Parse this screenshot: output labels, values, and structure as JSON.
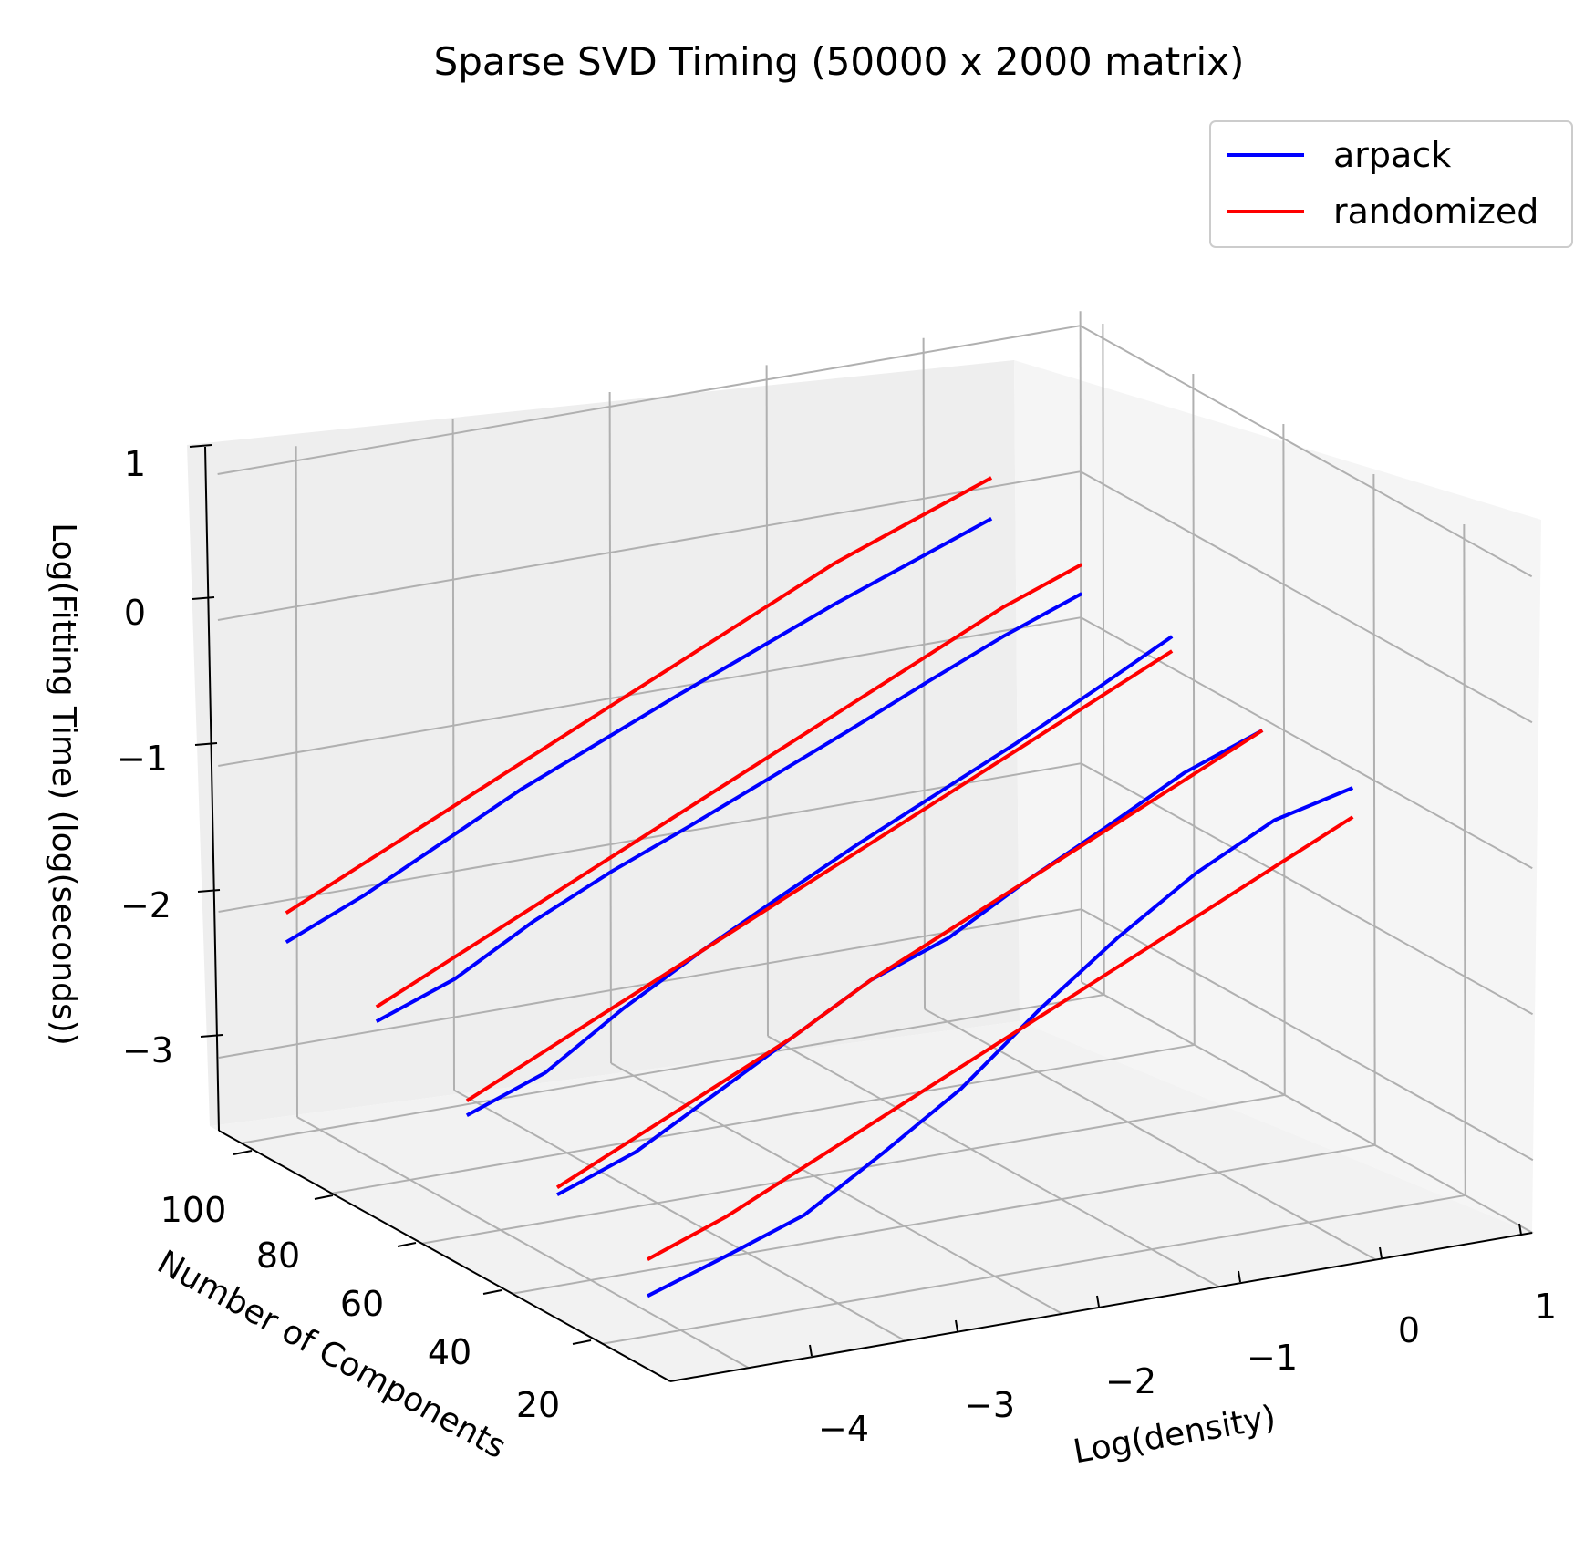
{
  "chart_data": {
    "type": "line",
    "projection": "3d",
    "title": "Sparse SVD Timing (50000 x 2000 matrix)",
    "xlabel": "Log(density)",
    "ylabel": "Number of Components",
    "zlabel": "Log(Fitting Time) (log(seconds))",
    "xticks": [
      "−4",
      "−3",
      "−2",
      "−1",
      "0",
      "1"
    ],
    "yticks": [
      "20",
      "40",
      "60",
      "80",
      "100"
    ],
    "zticks": [
      "−3",
      "−2",
      "−1",
      "0",
      "1"
    ],
    "xlim": [
      -4.5,
      1.0
    ],
    "ylim": [
      5,
      105
    ],
    "zlim": [
      -3.5,
      1.1
    ],
    "grid": true,
    "legend_position": "top-right",
    "colors": {
      "arpack": "#0000ff",
      "randomized": "#ff0000",
      "grid": "#b0b0b0",
      "pane": "#f2f2f2"
    },
    "series": [
      {
        "name": "arpack",
        "color": "#0000ff",
        "lines": [
          {
            "n_components": 10,
            "x": [
              -4.5,
              -4.0,
              -3.5,
              -3.0,
              -2.5,
              -2.0,
              -1.5,
              -1.0,
              -0.5,
              0.0
            ],
            "z": [
              -3.0,
              -2.82,
              -2.63,
              -2.3,
              -1.95,
              -1.5,
              -1.1,
              -0.75,
              -0.48,
              -0.35
            ]
          },
          {
            "n_components": 30,
            "x": [
              -4.5,
              -4.0,
              -3.5,
              -3.0,
              -2.5,
              -2.0,
              -1.5,
              -1.0,
              -0.5,
              0.0
            ],
            "z": [
              -2.65,
              -2.45,
              -2.15,
              -1.85,
              -1.55,
              -1.35,
              -1.05,
              -0.78,
              -0.5,
              -0.3
            ]
          },
          {
            "n_components": 50,
            "x": [
              -4.5,
              -4.0,
              -3.5,
              -3.0,
              -2.5,
              -2.0,
              -1.5,
              -1.0,
              -0.5,
              0.0
            ],
            "z": [
              -2.45,
              -2.25,
              -1.9,
              -1.6,
              -1.32,
              -1.05,
              -0.8,
              -0.55,
              -0.28,
              0.0
            ]
          },
          {
            "n_components": 70,
            "x": [
              -4.5,
              -4.0,
              -3.5,
              -3.0,
              -2.5,
              -2.0,
              -1.5,
              -1.0,
              -0.5,
              0.0
            ],
            "z": [
              -2.15,
              -1.95,
              -1.65,
              -1.4,
              -1.18,
              -0.95,
              -0.72,
              -0.48,
              -0.25,
              -0.05
            ]
          },
          {
            "n_components": 90,
            "x": [
              -4.5,
              -4.0,
              -3.5,
              -3.0,
              -2.5,
              -2.0,
              -1.5,
              -1.0,
              -0.5,
              0.0
            ],
            "z": [
              -1.95,
              -1.72,
              -1.45,
              -1.18,
              -0.95,
              -0.72,
              -0.5,
              -0.28,
              -0.08,
              0.12
            ]
          }
        ]
      },
      {
        "name": "randomized",
        "color": "#ff0000",
        "lines": [
          {
            "n_components": 10,
            "x": [
              -4.5,
              -4.0,
              -3.5,
              -3.0,
              -2.5,
              -2.0,
              -1.5,
              -1.0,
              -0.5,
              0.0
            ],
            "z": [
              -2.75,
              -2.55,
              -2.3,
              -2.05,
              -1.8,
              -1.55,
              -1.3,
              -1.05,
              -0.8,
              -0.55
            ]
          },
          {
            "n_components": 30,
            "x": [
              -4.5,
              -4.0,
              -3.5,
              -3.0,
              -2.5,
              -2.0,
              -1.5,
              -1.0,
              -0.5,
              0.0
            ],
            "z": [
              -2.6,
              -2.35,
              -2.1,
              -1.85,
              -1.55,
              -1.3,
              -1.05,
              -0.8,
              -0.55,
              -0.3
            ]
          },
          {
            "n_components": 50,
            "x": [
              -4.5,
              -4.0,
              -3.5,
              -3.0,
              -2.5,
              -2.0,
              -1.5,
              -1.0,
              -0.5,
              0.0
            ],
            "z": [
              -2.35,
              -2.1,
              -1.85,
              -1.6,
              -1.35,
              -1.1,
              -0.85,
              -0.6,
              -0.35,
              -0.1
            ]
          },
          {
            "n_components": 70,
            "x": [
              -4.5,
              -4.0,
              -3.5,
              -3.0,
              -2.5,
              -2.0,
              -1.5,
              -1.0,
              -0.5,
              0.0
            ],
            "z": [
              -2.05,
              -1.8,
              -1.55,
              -1.3,
              -1.05,
              -0.8,
              -0.55,
              -0.3,
              -0.05,
              0.15
            ]
          },
          {
            "n_components": 90,
            "x": [
              -4.5,
              -4.0,
              -3.5,
              -3.0,
              -2.5,
              -2.0,
              -1.5,
              -1.0,
              -0.5,
              0.0
            ],
            "z": [
              -1.75,
              -1.5,
              -1.25,
              -1.0,
              -0.75,
              -0.5,
              -0.25,
              0.0,
              0.2,
              0.4
            ]
          }
        ]
      }
    ]
  }
}
